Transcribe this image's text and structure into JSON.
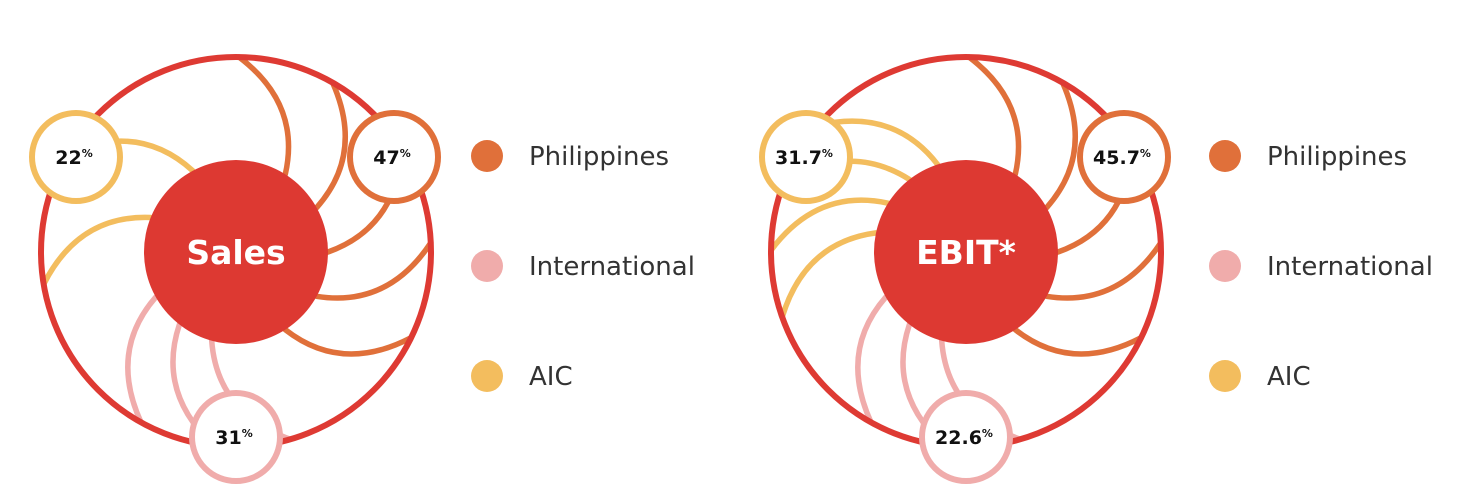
{
  "colors": {
    "ring": "#de3a33",
    "philippines": "#e0703a",
    "international": "#f0acab",
    "aic": "#f3bd5e",
    "center": "#dd3932"
  },
  "chart_data": [
    {
      "type": "pie",
      "title": "Sales",
      "slices": [
        {
          "label": "Philippines",
          "value": 47,
          "display": "47",
          "unit": "%"
        },
        {
          "label": "International",
          "value": 31,
          "display": "31",
          "unit": "%"
        },
        {
          "label": "AIC",
          "value": 22,
          "display": "22",
          "unit": "%"
        }
      ],
      "legend": [
        "Philippines",
        "International",
        "AIC"
      ],
      "legend_position": "right"
    },
    {
      "type": "pie",
      "title": "EBIT*",
      "slices": [
        {
          "label": "Philippines",
          "value": 45.7,
          "display": "45.7",
          "unit": "%"
        },
        {
          "label": "International",
          "value": 22.6,
          "display": "22.6",
          "unit": "%"
        },
        {
          "label": "AIC",
          "value": 31.7,
          "display": "31.7",
          "unit": "%"
        }
      ],
      "legend": [
        "Philippines",
        "International",
        "AIC"
      ],
      "legend_position": "right"
    }
  ]
}
